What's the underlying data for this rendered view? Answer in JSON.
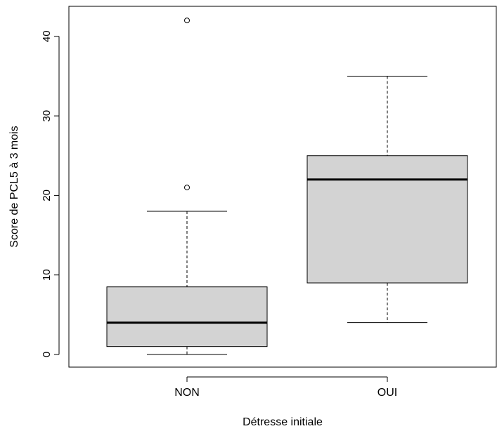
{
  "chart_data": {
    "type": "boxplot",
    "title": "",
    "xlabel": "Détresse initiale",
    "ylabel": "Score de PCL5 à 3 mois",
    "categories": [
      "NON",
      "OUI"
    ],
    "ylim": [
      0,
      42
    ],
    "yticks": [
      0,
      10,
      20,
      30,
      40
    ],
    "grid": false,
    "box_fill": "#d3d3d3",
    "boxes": [
      {
        "label": "NON",
        "whisker_low": 0,
        "q1": 1,
        "median": 4,
        "q3": 8.5,
        "whisker_high": 18,
        "outliers": [
          21,
          42
        ]
      },
      {
        "label": "OUI",
        "whisker_low": 4,
        "q1": 9,
        "median": 22,
        "q3": 25,
        "whisker_high": 35,
        "outliers": []
      }
    ]
  }
}
